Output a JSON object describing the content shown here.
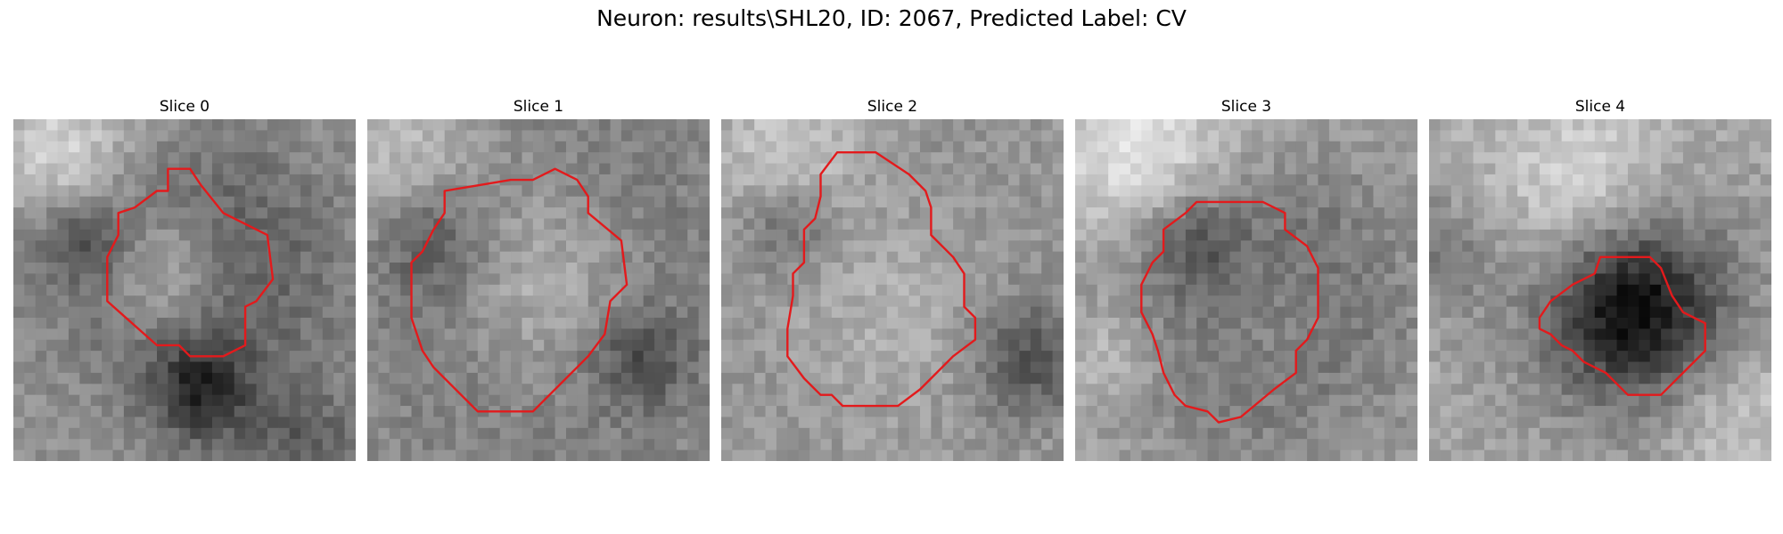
{
  "figure": {
    "title": "Neuron: results\\SHL20, ID: 2067, Predicted Label: CV"
  },
  "contour_color": "#e31a1c",
  "panels": [
    {
      "title": "Slice 0"
    },
    {
      "title": "Slice 1"
    },
    {
      "title": "Slice 2"
    },
    {
      "title": "Slice 3"
    },
    {
      "title": "Slice 4"
    }
  ]
}
